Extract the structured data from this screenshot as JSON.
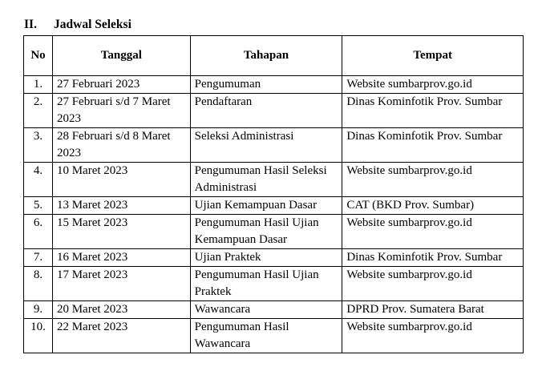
{
  "section": {
    "number": "II.",
    "title": "Jadwal Seleksi"
  },
  "table": {
    "headers": [
      "No",
      "Tanggal",
      "Tahapan",
      "Tempat"
    ],
    "rows": [
      {
        "no": "1.",
        "tanggal": "27 Februari 2023",
        "tahapan": "Pengumuman",
        "tempat": "Website sumbarprov.go.id"
      },
      {
        "no": "2.",
        "tanggal": "27 Februari s/d 7 Maret 2023",
        "tahapan": "Pendaftaran",
        "tempat": "Dinas Kominfotik Prov. Sumbar"
      },
      {
        "no": "3.",
        "tanggal": "28 Februari s/d 8 Maret 2023",
        "tahapan": "Seleksi Administrasi",
        "tempat": "Dinas Kominfotik Prov. Sumbar"
      },
      {
        "no": "4.",
        "tanggal": "10 Maret 2023",
        "tahapan": "Pengumuman Hasil Seleksi Administrasi",
        "tempat": "Website sumbarprov.go.id"
      },
      {
        "no": "5.",
        "tanggal": "13 Maret 2023",
        "tahapan": "Ujian Kemampuan Dasar",
        "tempat": "CAT (BKD Prov. Sumbar)"
      },
      {
        "no": "6.",
        "tanggal": "15 Maret 2023",
        "tahapan": "Pengumuman Hasil Ujian Kemampuan Dasar",
        "tempat": "Website sumbarprov.go.id"
      },
      {
        "no": "7.",
        "tanggal": "16 Maret 2023",
        "tahapan": "Ujian Praktek",
        "tempat": "Dinas Kominfotik Prov. Sumbar"
      },
      {
        "no": "8.",
        "tanggal": "17 Maret 2023",
        "tahapan": "Pengumuman Hasil Ujian Praktek",
        "tempat": "Website sumbarprov.go.id"
      },
      {
        "no": "9.",
        "tanggal": "20 Maret 2023",
        "tahapan": "Wawancara",
        "tempat": "DPRD Prov. Sumatera Barat"
      },
      {
        "no": "10.",
        "tanggal": "22 Maret 2023",
        "tahapan": "Pengumuman Hasil Wawancara",
        "tempat": "Website sumbarprov.go.id"
      }
    ]
  }
}
